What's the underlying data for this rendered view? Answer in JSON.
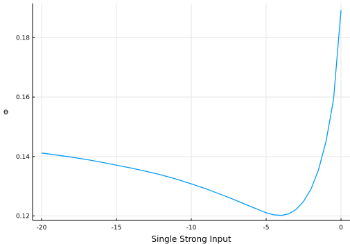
{
  "chart_data": {
    "type": "line",
    "title": "",
    "xlabel": "Single Strong Input",
    "ylabel": "Φ",
    "xlim": [
      -20.6,
      0.6
    ],
    "ylim": [
      0.1185,
      0.1915
    ],
    "xticks": [
      -20,
      -15,
      -10,
      -5,
      0
    ],
    "xtick_labels": [
      "-20",
      "-15",
      "-10",
      "-5",
      "0"
    ],
    "yticks": [
      0.12,
      0.14,
      0.16,
      0.18
    ],
    "ytick_labels": [
      "0.12",
      "0.14",
      "0.16",
      "0.18"
    ],
    "grid": true,
    "legend": "none",
    "series": [
      {
        "color": "#009af9",
        "x": [
          -20,
          -19,
          -18,
          -17,
          -16,
          -15,
          -14,
          -13,
          -12,
          -11,
          -10,
          -9,
          -8,
          -7,
          -6,
          -5.5,
          -5,
          -4.5,
          -4,
          -3.5,
          -3,
          -2.5,
          -2,
          -1.5,
          -1,
          -0.5,
          0
        ],
        "y": [
          0.1412,
          0.1405,
          0.1398,
          0.139,
          0.1381,
          0.1371,
          0.1361,
          0.135,
          0.1338,
          0.1324,
          0.1308,
          0.1291,
          0.1272,
          0.1252,
          0.1231,
          0.1221,
          0.1211,
          0.1204,
          0.1202,
          0.1207,
          0.1222,
          0.1249,
          0.1291,
          0.1356,
          0.1451,
          0.1592,
          0.1893
        ]
      }
    ]
  }
}
